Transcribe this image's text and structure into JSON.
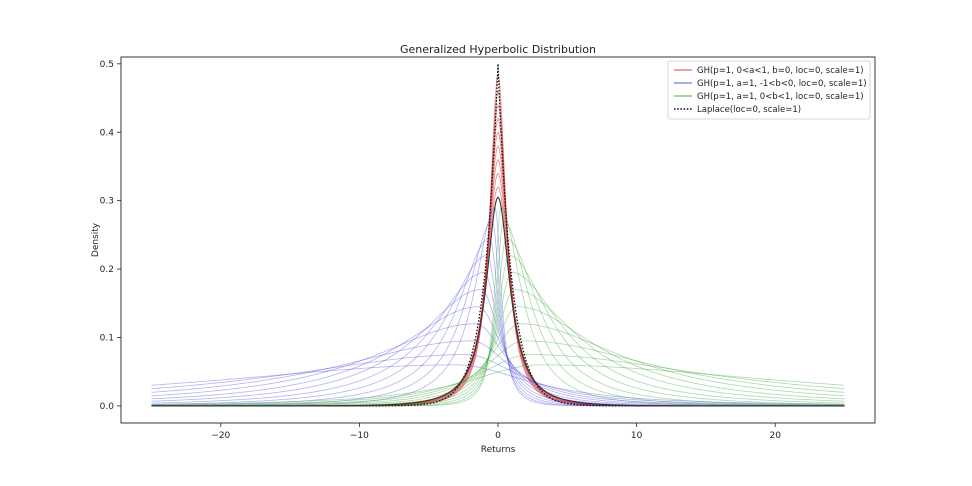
{
  "chart_data": {
    "type": "line",
    "title": "Generalized Hyperbolic Distribution",
    "xlabel": "Returns",
    "ylabel": "Density",
    "xlim": [
      -27.2,
      27.2
    ],
    "ylim": [
      -0.025,
      0.51
    ],
    "x_ticks": [
      -20,
      -10,
      0,
      10,
      20
    ],
    "x_tick_labels": [
      "−20",
      "−10",
      "0",
      "10",
      "20"
    ],
    "y_ticks": [
      0.0,
      0.1,
      0.2,
      0.3,
      0.4,
      0.5
    ],
    "y_tick_labels": [
      "0.0",
      "0.1",
      "0.2",
      "0.3",
      "0.4",
      "0.5"
    ],
    "x_range": [
      -25,
      25
    ],
    "grid": false,
    "legend_position": "top-right",
    "series_groups": [
      {
        "name": "GH(p=1, 0<a<1, b=0, loc=0, scale=1)",
        "color": "#d62728",
        "kind": "symmetric",
        "curves": [
          {
            "peak_x": 0,
            "peak_y": 0.485,
            "width": 0.9
          },
          {
            "peak_x": 0,
            "peak_y": 0.46,
            "width": 0.95
          },
          {
            "peak_x": 0,
            "peak_y": 0.44,
            "width": 1.0
          },
          {
            "peak_x": 0,
            "peak_y": 0.42,
            "width": 1.05
          },
          {
            "peak_x": 0,
            "peak_y": 0.4,
            "width": 1.1
          },
          {
            "peak_x": 0,
            "peak_y": 0.38,
            "width": 1.15
          },
          {
            "peak_x": 0,
            "peak_y": 0.36,
            "width": 1.2
          },
          {
            "peak_x": 0,
            "peak_y": 0.34,
            "width": 1.25
          },
          {
            "peak_x": 0,
            "peak_y": 0.32,
            "width": 1.3
          }
        ]
      },
      {
        "name": "GH(p=1, a=1, -1<b<0, loc=0, scale=1)",
        "color": "#4040e0",
        "kind": "left-skewed",
        "curves": [
          {
            "peak_x": -0.2,
            "peak_y": 0.29,
            "width": 1.2
          },
          {
            "peak_x": -0.4,
            "peak_y": 0.27,
            "width": 1.5
          },
          {
            "peak_x": -0.6,
            "peak_y": 0.245,
            "width": 1.9
          },
          {
            "peak_x": -0.8,
            "peak_y": 0.22,
            "width": 2.4
          },
          {
            "peak_x": -1.0,
            "peak_y": 0.195,
            "width": 3.0
          },
          {
            "peak_x": -1.2,
            "peak_y": 0.17,
            "width": 3.8
          },
          {
            "peak_x": -1.4,
            "peak_y": 0.145,
            "width": 4.8
          },
          {
            "peak_x": -1.6,
            "peak_y": 0.12,
            "width": 6.2
          },
          {
            "peak_x": -1.9,
            "peak_y": 0.095,
            "width": 8.2
          },
          {
            "peak_x": -2.3,
            "peak_y": 0.075,
            "width": 11.0
          },
          {
            "peak_x": -3.0,
            "peak_y": 0.06,
            "width": 15.0
          }
        ]
      },
      {
        "name": "GH(p=1, a=1, 0<b<1, loc=0, scale=1)",
        "color": "#2ca02c",
        "kind": "right-skewed",
        "curves": [
          {
            "peak_x": 0.2,
            "peak_y": 0.29,
            "width": 1.2
          },
          {
            "peak_x": 0.4,
            "peak_y": 0.27,
            "width": 1.5
          },
          {
            "peak_x": 0.6,
            "peak_y": 0.245,
            "width": 1.9
          },
          {
            "peak_x": 0.8,
            "peak_y": 0.22,
            "width": 2.4
          },
          {
            "peak_x": 1.0,
            "peak_y": 0.195,
            "width": 3.0
          },
          {
            "peak_x": 1.2,
            "peak_y": 0.17,
            "width": 3.8
          },
          {
            "peak_x": 1.4,
            "peak_y": 0.145,
            "width": 4.8
          },
          {
            "peak_x": 1.6,
            "peak_y": 0.12,
            "width": 6.2
          },
          {
            "peak_x": 1.9,
            "peak_y": 0.095,
            "width": 8.2
          },
          {
            "peak_x": 2.3,
            "peak_y": 0.075,
            "width": 11.0
          },
          {
            "peak_x": 3.0,
            "peak_y": 0.06,
            "width": 15.0
          }
        ]
      },
      {
        "name": "Laplace(loc=0, scale=1)",
        "color": "#111111",
        "style": "dotted",
        "kind": "laplace",
        "curves": [
          {
            "peak_x": 0,
            "peak_y": 0.5,
            "width": 1.0
          }
        ]
      }
    ],
    "reference_curve": {
      "color": "#333333",
      "peak_x": 0,
      "peak_y": 0.305,
      "width": 1.3
    }
  }
}
